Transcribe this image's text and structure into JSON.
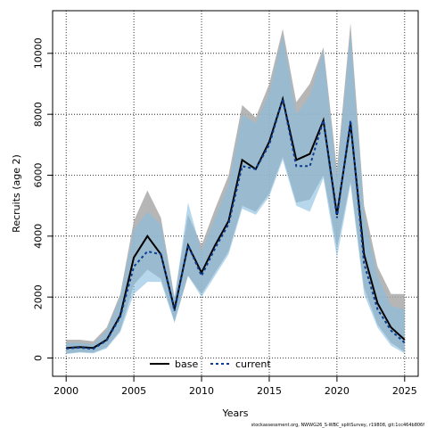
{
  "chart_data": {
    "type": "area",
    "xlabel": "Years",
    "ylabel": "Recruits (age 2)",
    "xlim": [
      1999,
      2026
    ],
    "ylim": [
      -600,
      11400
    ],
    "xticks": [
      2000,
      2005,
      2010,
      2015,
      2020,
      2025
    ],
    "yticks": [
      0,
      2000,
      4000,
      6000,
      8000,
      10000
    ],
    "grid": true,
    "legend_position": "bottom-center",
    "x": [
      2000,
      2001,
      2002,
      2003,
      2004,
      2005,
      2006,
      2007,
      2008,
      2009,
      2010,
      2011,
      2012,
      2013,
      2014,
      2015,
      2016,
      2017,
      2018,
      2019,
      2020,
      2021,
      2022,
      2023,
      2024,
      2025
    ],
    "series": [
      {
        "name": "base",
        "line_style": "solid",
        "line_color": "#000000",
        "band_color": "#a9a9a9",
        "values": [
          330,
          360,
          330,
          600,
          1400,
          3300,
          4000,
          3400,
          1600,
          3700,
          2800,
          3700,
          4500,
          6500,
          6200,
          7100,
          8500,
          6500,
          6700,
          7800,
          4700,
          7700,
          3400,
          1800,
          1000,
          600
        ],
        "lower": [
          150,
          200,
          180,
          350,
          900,
          2400,
          2900,
          2600,
          1200,
          2700,
          2100,
          2800,
          3500,
          5000,
          4800,
          5400,
          6600,
          5100,
          5200,
          6000,
          3600,
          5800,
          2300,
          1100,
          500,
          200
        ],
        "upper": [
          600,
          600,
          550,
          1000,
          2100,
          4500,
          5500,
          4600,
          2000,
          4700,
          3700,
          4900,
          6000,
          8300,
          7900,
          9000,
          10800,
          8400,
          9000,
          10200,
          6200,
          11000,
          5000,
          3000,
          2100,
          2100
        ]
      },
      {
        "name": "current",
        "line_style": "dashed",
        "line_color": "#0b3d91",
        "band_color": "#87bde0",
        "values": [
          310,
          340,
          300,
          580,
          1350,
          3000,
          3500,
          3400,
          1550,
          3700,
          2700,
          3600,
          4400,
          6300,
          6200,
          7000,
          8500,
          6300,
          6300,
          7800,
          4600,
          7800,
          3100,
          1600,
          900,
          500
        ],
        "lower": [
          130,
          180,
          150,
          320,
          850,
          2100,
          2500,
          2500,
          1150,
          2700,
          2000,
          2700,
          3400,
          4900,
          4700,
          5300,
          6500,
          5000,
          4800,
          5900,
          3300,
          5700,
          2100,
          1000,
          400,
          150
        ],
        "upper": [
          500,
          500,
          450,
          900,
          2000,
          4200,
          4800,
          4400,
          1950,
          5100,
          3500,
          4600,
          5700,
          8000,
          7700,
          8700,
          10600,
          8000,
          8600,
          10100,
          5900,
          10700,
          4700,
          2700,
          1700,
          1600
        ]
      }
    ],
    "footnote": "stockassessment.org, NWWG26_S-WBC_splitSurvey, r19808, git:1cc464b806f"
  }
}
